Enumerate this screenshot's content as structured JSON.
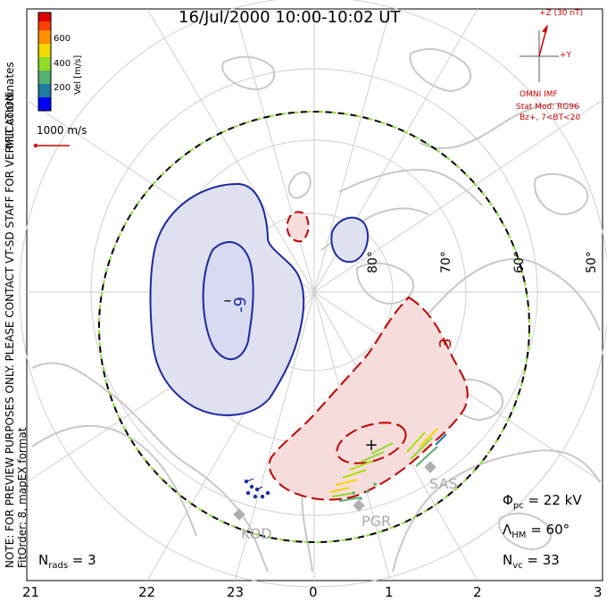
{
  "title": "16/Jul/2000 10:00-10:02 UT",
  "left_notes": {
    "coords": "MLT coordinates",
    "preview": "NOTE: FOR PREVIEW PURPOSES ONLY. PLEASE CONTACT VT-SD STAFF FOR VERIFICATION.",
    "fit": "FitOrder: 8, mapEX format"
  },
  "colorbar": {
    "label": "Vel [m/s]",
    "ticks": [
      "600",
      "400",
      "200"
    ],
    "colors": [
      "#0000ff",
      "#1f7ba0",
      "#55b070",
      "#8fdc28",
      "#f0d800",
      "#ff9000",
      "#ff4000",
      "#e00000"
    ]
  },
  "vector_scale": {
    "label": "1000 m/s",
    "color": "#d40000"
  },
  "imf": {
    "z_label": "+Z (30 nT)",
    "y_label": "+Y",
    "source": "OMNI IMF",
    "model": "Stat Mod: RG96",
    "condition": "Bz+, 7<BT<20",
    "color": "#d40000"
  },
  "latitude_labels": [
    "80°",
    "70°",
    "60°",
    "50°"
  ],
  "mlt_labels": [
    "21",
    "22",
    "23",
    "0",
    "1",
    "2",
    "3"
  ],
  "potential": {
    "negative_contour_label": "-9",
    "positive_contour_label": "3",
    "negative_fill": "#dfe0f0",
    "positive_fill": "#f7dcdc",
    "negative_line": "#1a2aa0",
    "positive_line": "#c00000"
  },
  "radar_sites": [
    "KOD",
    "PGR",
    "SAS"
  ],
  "stats": {
    "phi_pc": {
      "symbol": "Φ",
      "sub": "pc",
      "value": " = 22 kV"
    },
    "lambda_hm": {
      "symbol": "Λ",
      "sub": "HM",
      "value": " = 60°"
    },
    "n_vc": {
      "symbol": "N",
      "sub": "vc",
      "value": " = 33"
    },
    "n_rads": {
      "symbol": "N",
      "sub": "rads",
      "value": " = 3"
    }
  },
  "boundary_colors": {
    "dash": "#000000",
    "alt": "#90e040"
  },
  "land_color": "#c8c8c8",
  "grid_color": "#cfcfcf"
}
